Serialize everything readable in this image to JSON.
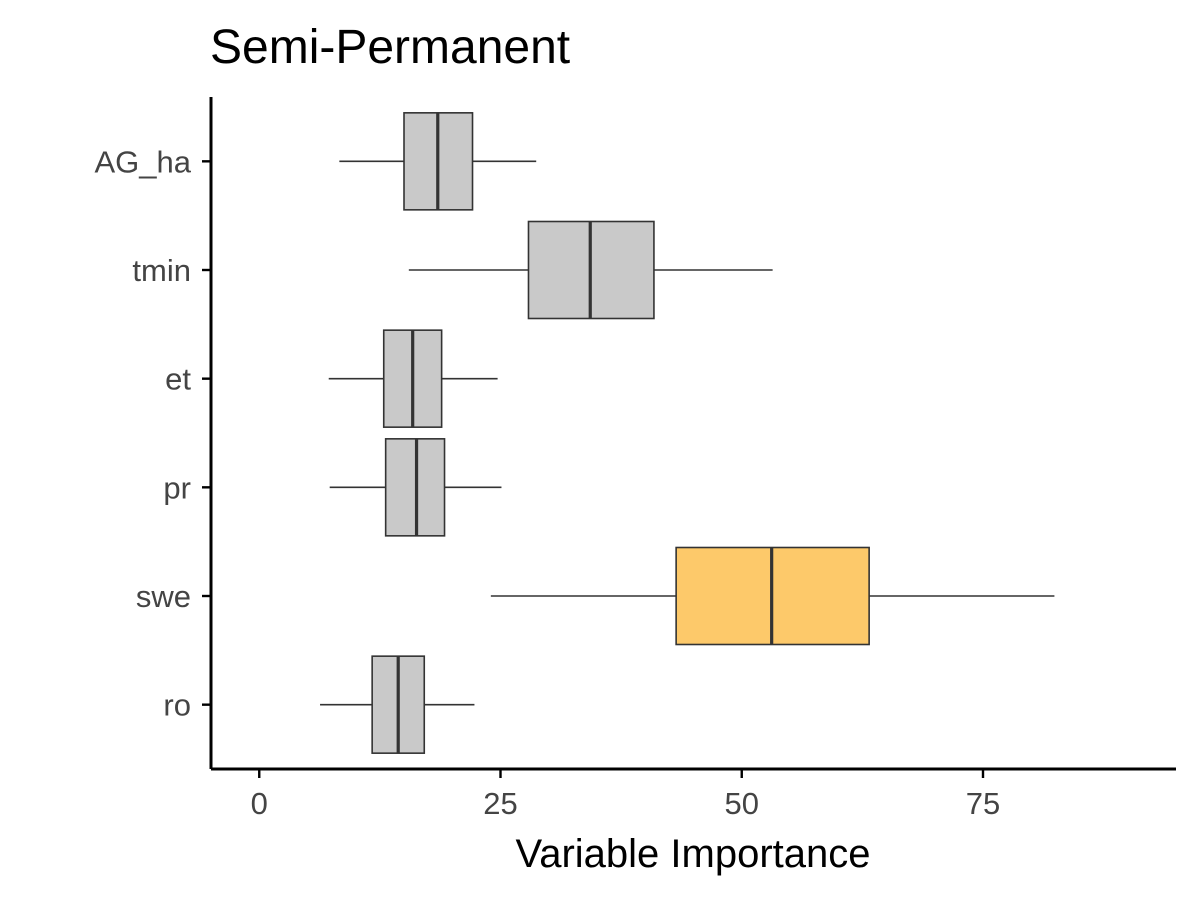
{
  "chart_data": {
    "type": "boxplot",
    "orientation": "horizontal",
    "title": "Semi-Permanent",
    "xlabel": "Variable Importance",
    "ylabel": "",
    "xlim": [
      -5,
      95
    ],
    "x_ticks": [
      0,
      25,
      50,
      75
    ],
    "grid": false,
    "categories": [
      "AG_ha",
      "tmin",
      "et",
      "pr",
      "swe",
      "ro"
    ],
    "boxes": [
      {
        "category": "AG_ha",
        "whisker_low": 8.3,
        "q1": 15.0,
        "median": 18.5,
        "q3": 22.1,
        "whisker_high": 28.7,
        "fill": "#c9c9c9"
      },
      {
        "category": "tmin",
        "whisker_low": 15.5,
        "q1": 27.9,
        "median": 34.3,
        "q3": 40.9,
        "whisker_high": 53.2,
        "fill": "#c9c9c9"
      },
      {
        "category": "et",
        "whisker_low": 7.2,
        "q1": 12.9,
        "median": 15.9,
        "q3": 18.9,
        "whisker_high": 24.7,
        "fill": "#c9c9c9"
      },
      {
        "category": "pr",
        "whisker_low": 7.3,
        "q1": 13.1,
        "median": 16.3,
        "q3": 19.2,
        "whisker_high": 25.1,
        "fill": "#c9c9c9"
      },
      {
        "category": "swe",
        "whisker_low": 24.0,
        "q1": 43.2,
        "median": 53.1,
        "q3": 63.2,
        "whisker_high": 82.4,
        "fill": "#fdc96a"
      },
      {
        "category": "ro",
        "whisker_low": 6.3,
        "q1": 11.7,
        "median": 14.4,
        "q3": 17.1,
        "whisker_high": 22.3,
        "fill": "#c9c9c9"
      }
    ],
    "colors": {
      "box_default": "#c9c9c9",
      "box_highlight": "#fdc96a",
      "outline": "#333333",
      "axis": "#000000"
    }
  }
}
